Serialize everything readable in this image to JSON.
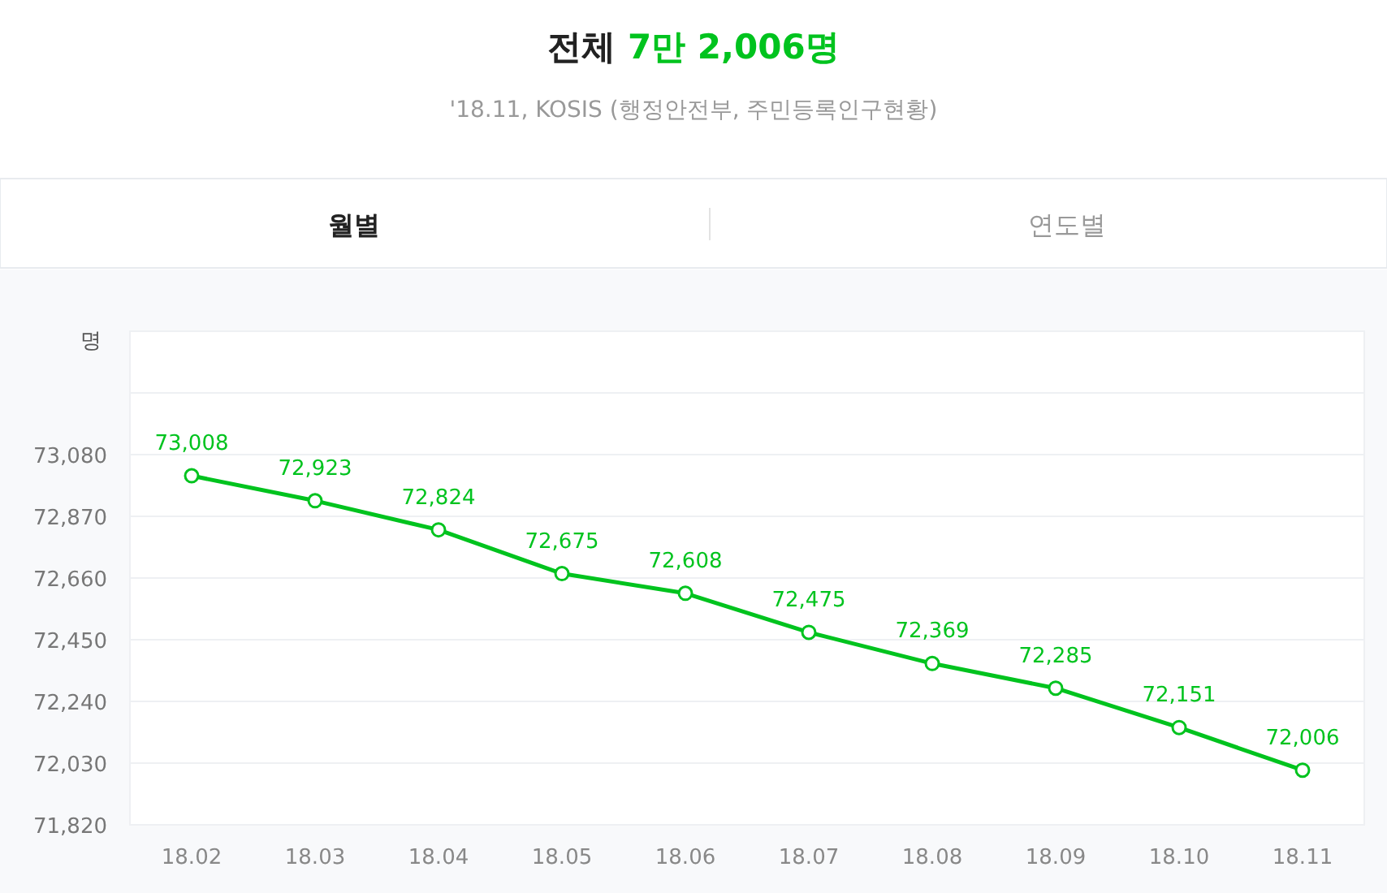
{
  "chart_data": {
    "type": "line",
    "title": "전체 7만 2,006명",
    "subtitle": "'18.11, KOSIS (행정안전부, 주민등록인구현황)",
    "ylabel": "명",
    "annotations": [
      "월별",
      "연도별"
    ],
    "categories": [
      "18.02",
      "18.03",
      "18.04",
      "18.05",
      "18.06",
      "18.07",
      "18.08",
      "18.09",
      "18.10",
      "18.11"
    ],
    "series": [
      {
        "color": "#00c31e",
        "values": [
          73008,
          72923,
          72824,
          72675,
          72608,
          72475,
          72369,
          72285,
          72151,
          72006
        ],
        "value_labels": [
          "73,008",
          "72,923",
          "72,824",
          "72,675",
          "72,608",
          "72,475",
          "72,369",
          "72,285",
          "72,151",
          "72,006"
        ]
      }
    ],
    "ylim": [
      71820,
      73500
    ],
    "yticks": [
      {
        "value": 71820,
        "label": "71,820"
      },
      {
        "value": 72030,
        "label": "72,030"
      },
      {
        "value": 72240,
        "label": "72,240"
      },
      {
        "value": 72450,
        "label": "72,450"
      },
      {
        "value": 72660,
        "label": "72,660"
      },
      {
        "value": 72870,
        "label": "72,870"
      },
      {
        "value": 73080,
        "label": "73,080"
      },
      {
        "value": 73290,
        "label": null
      }
    ],
    "grid": "y",
    "marker": "circle",
    "line_style": "solid"
  }
}
